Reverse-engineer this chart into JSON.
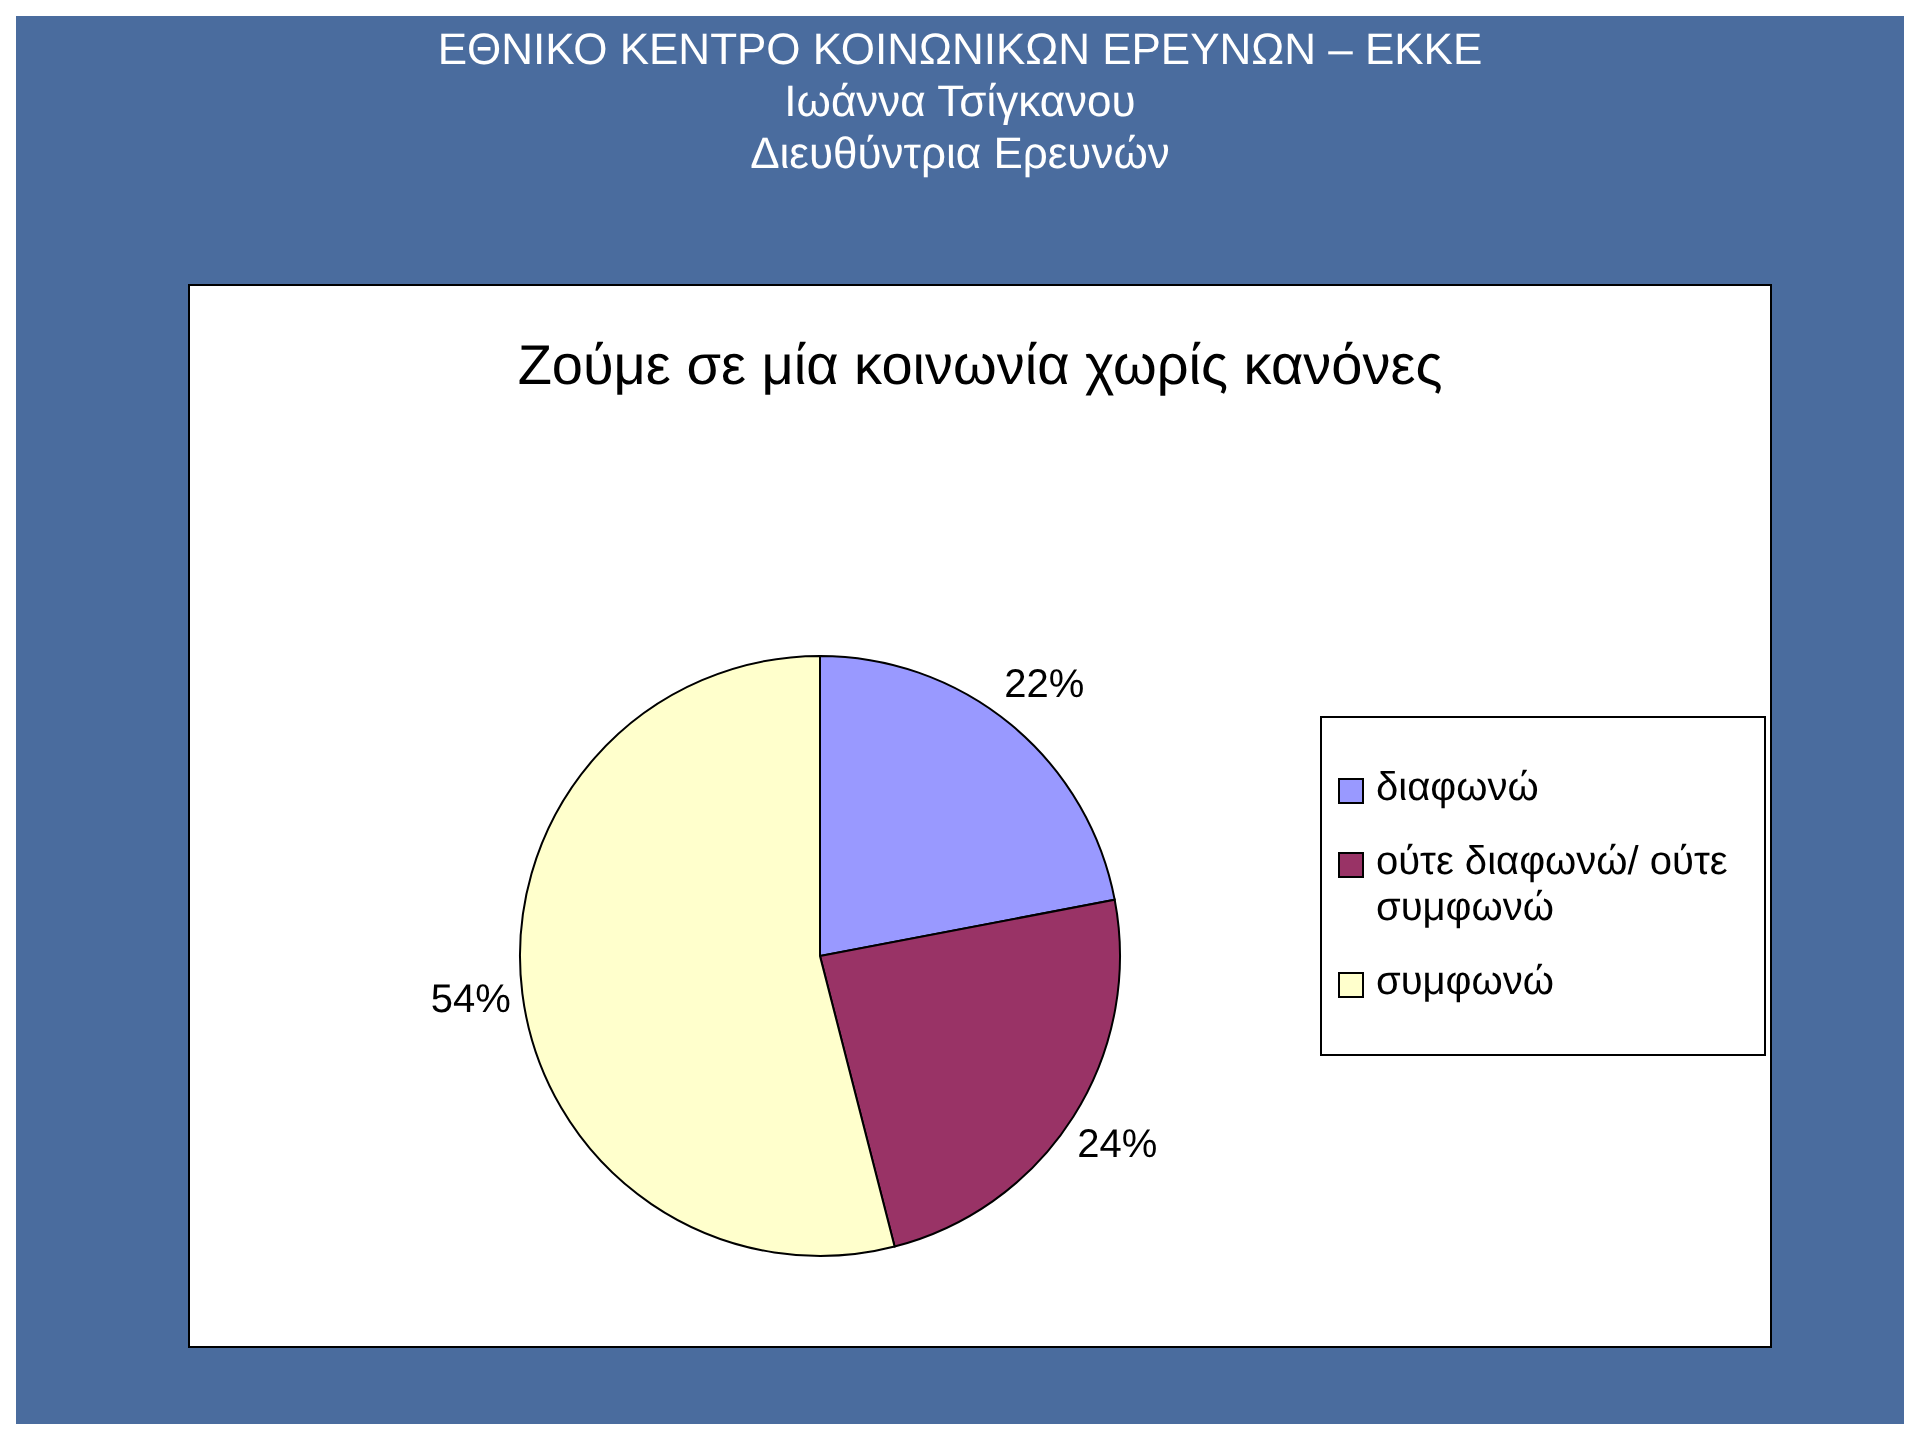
{
  "chart_data": {
    "type": "pie",
    "title": "Ζούμε σε μία κοινωνία χωρίς κανόνες",
    "annotations": [
      "ΕΘΝΙΚΟ ΚΕΝΤΡΟ ΚΟΙΝΩΝΙΚΩΝ ΕΡΕΥΝΩΝ – ΕΚΚΕ",
      "Ιωάννα Τσίγκανου",
      "Διευθύντρια Ερευνών"
    ],
    "categories": [
      "διαφωνώ",
      "ούτε διαφωνώ/ ούτε συμφωνώ",
      "συμφωνώ"
    ],
    "values": [
      22,
      24,
      54
    ],
    "colors": [
      "#9999ff",
      "#993366",
      "#ffffcc"
    ],
    "value_labels": [
      "22%",
      "24%",
      "54%"
    ],
    "legend": "right"
  }
}
